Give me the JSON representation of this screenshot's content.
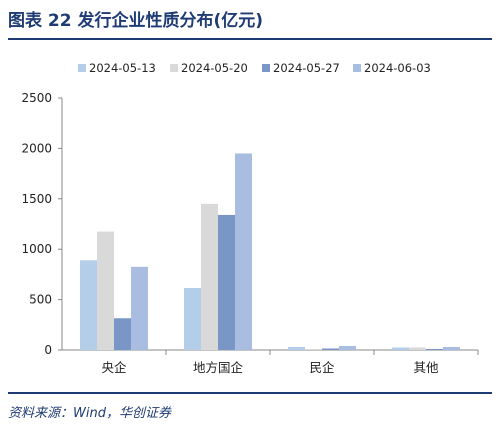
{
  "header": {
    "title": "图表 22   发行企业性质分布(亿元)"
  },
  "footer": {
    "source": "资料来源：Wind，华创证券"
  },
  "chart_data": {
    "type": "bar",
    "categories": [
      "央企",
      "地方国企",
      "民企",
      "其他"
    ],
    "series": [
      {
        "name": "2024-05-13",
        "color": "#b4cde8",
        "values": [
          890,
          615,
          30,
          25
        ]
      },
      {
        "name": "2024-05-20",
        "color": "#d9d9d9",
        "values": [
          1175,
          1450,
          10,
          25
        ]
      },
      {
        "name": "2024-05-27",
        "color": "#7a96c6",
        "values": [
          315,
          1340,
          15,
          10
        ]
      },
      {
        "name": "2024-06-03",
        "color": "#a9bde0",
        "values": [
          825,
          1950,
          40,
          30
        ]
      }
    ],
    "ylim": [
      0,
      2500
    ],
    "yticks": [
      0,
      500,
      1000,
      1500,
      2000,
      2500
    ],
    "ytick_labels": [
      "0",
      "500",
      "1000",
      "1500",
      "2000",
      "2500"
    ],
    "legend_position": "top",
    "grid": false
  }
}
